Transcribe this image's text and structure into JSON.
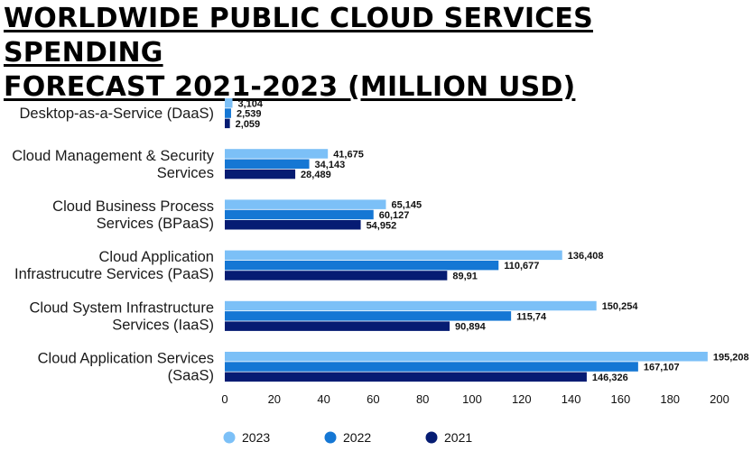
{
  "title": {
    "line1": "WORLDWIDE PUBLIC CLOUD SERVICES SPENDING",
    "line2": "FORECAST 2021-2023 (MILLION USD)"
  },
  "chart_data": {
    "type": "bar",
    "orientation": "horizontal",
    "title": "WORLDWIDE PUBLIC CLOUD SERVICES SPENDING FORECAST 2021-2023 (MILLION USD)",
    "categories": [
      [
        "Desktop-as-a-Service (DaaS)"
      ],
      [
        "Cloud Management & Security",
        "Services"
      ],
      [
        "Cloud Business Process",
        "Services (BPaaS)"
      ],
      [
        "Cloud Application",
        "Infrastrucutre Services (PaaS)"
      ],
      [
        "Cloud System Infrastructure",
        "Services (IaaS)"
      ],
      [
        "Cloud Application Services",
        "(SaaS)"
      ]
    ],
    "series": [
      {
        "name": "2023",
        "color": "#7cc0f7",
        "values": [
          3.104,
          41.675,
          65.145,
          136.408,
          150.254,
          195.208
        ],
        "labels": [
          "3,104",
          "41,675",
          "65,145",
          "136,408",
          "150,254",
          "195,208"
        ]
      },
      {
        "name": "2022",
        "color": "#1577d4",
        "values": [
          2.539,
          34.143,
          60.127,
          110.677,
          115.74,
          167.107
        ],
        "labels": [
          "2,539",
          "34,143",
          "60,127",
          "110,677",
          "115,74",
          "167,107"
        ]
      },
      {
        "name": "2021",
        "color": "#061c73",
        "values": [
          2.059,
          28.489,
          54.952,
          89.91,
          90.894,
          146.326
        ],
        "labels": [
          "2,059",
          "28,489",
          "54,952",
          "89,91",
          "90,894",
          "146,326"
        ]
      }
    ],
    "xlim": [
      0,
      200
    ],
    "xticks": [
      "0",
      "20",
      "40",
      "60",
      "80",
      "100",
      "120",
      "140",
      "160",
      "180",
      "200"
    ],
    "grid": false,
    "legend_position": "bottom"
  }
}
